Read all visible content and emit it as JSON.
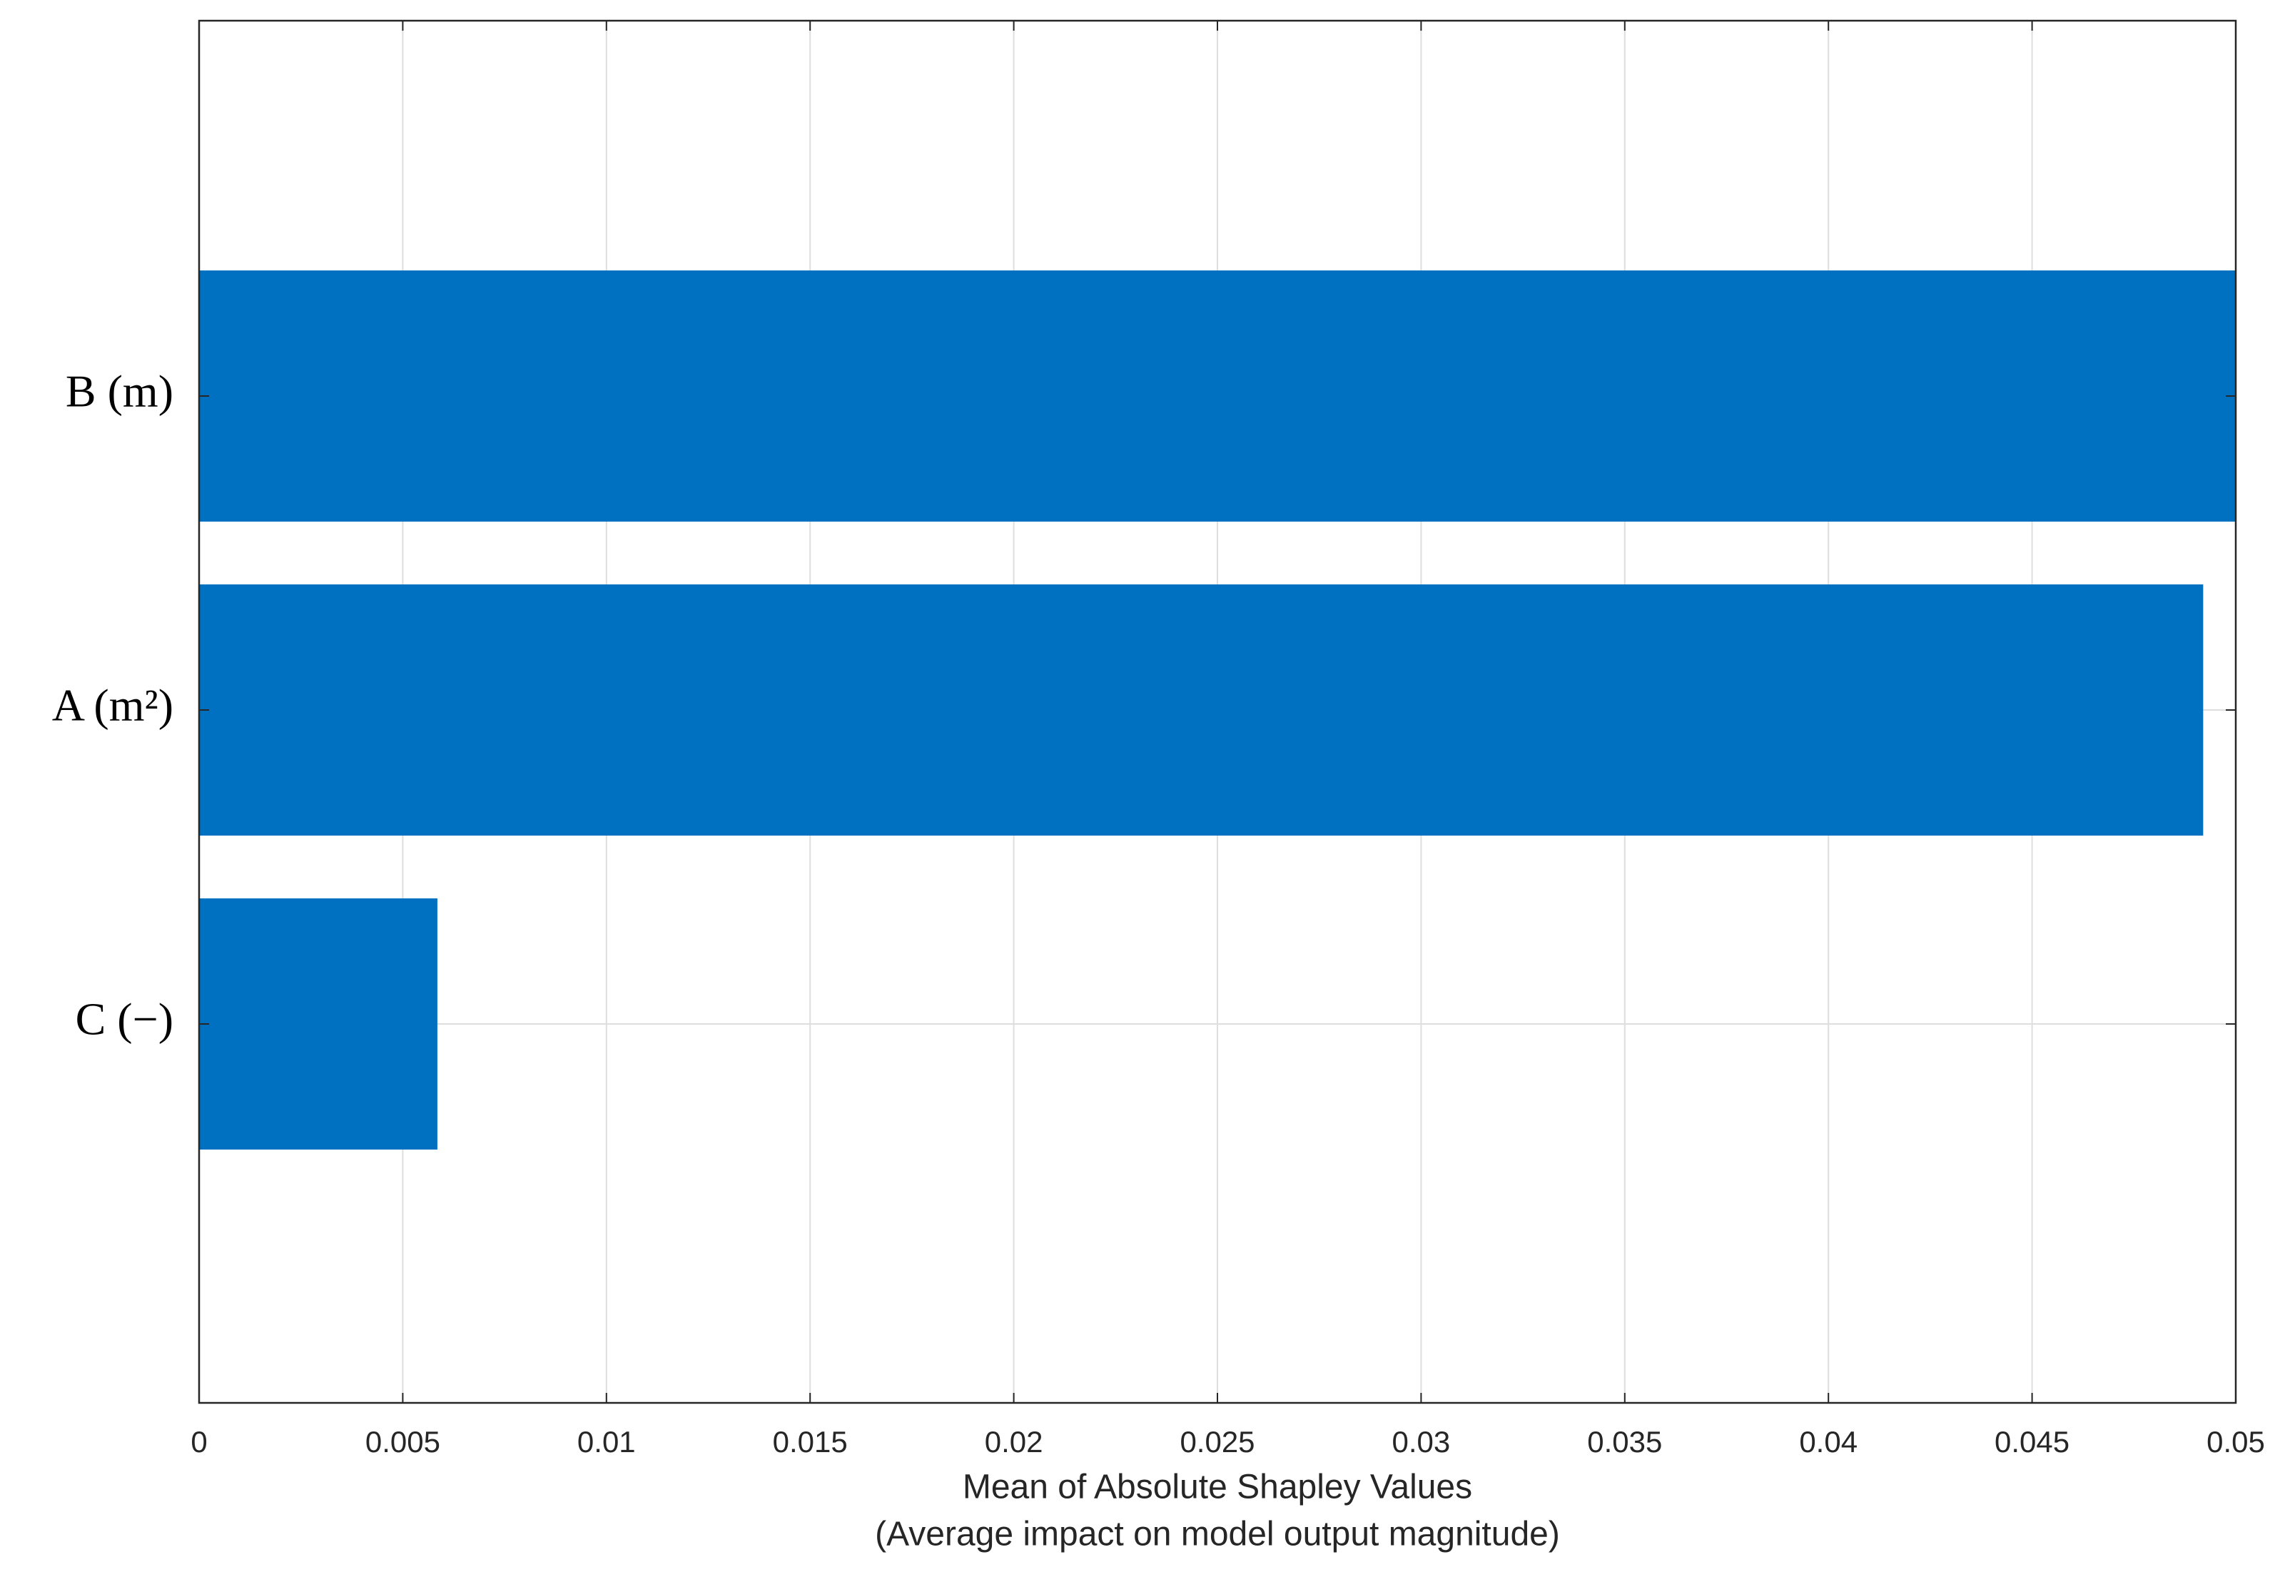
{
  "chart_data": {
    "type": "barh",
    "categories": [
      "B (m)",
      "A (m²)",
      "C (−)"
    ],
    "values": [
      0.05,
      0.0492,
      0.00585
    ],
    "color": "#0070c0",
    "xlim": [
      0,
      0.05
    ],
    "xticks": [
      0,
      0.005,
      0.01,
      0.015,
      0.02,
      0.025,
      0.03,
      0.035,
      0.04,
      0.045,
      0.05
    ],
    "xlabel": [
      "Mean of Absolute Shapley Values",
      "(Average impact on model output magnitude)"
    ],
    "grid": true
  }
}
